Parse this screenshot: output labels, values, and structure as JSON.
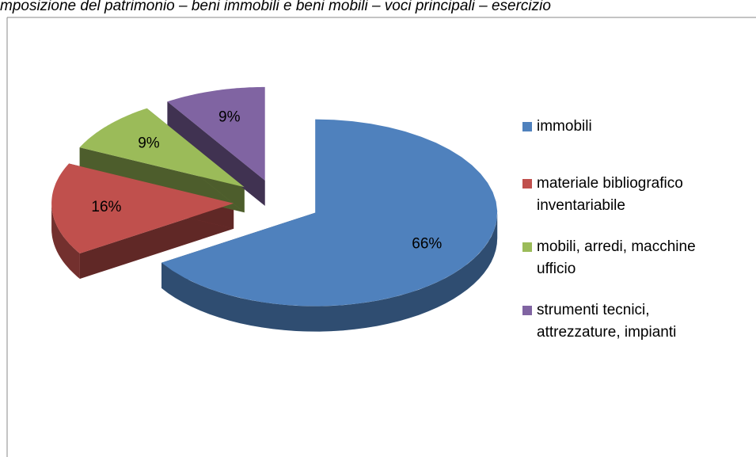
{
  "chart_data": {
    "type": "pie",
    "title": "mposizione del patrimonio – beni immobili e beni mobili – voci principali – esercizio",
    "categories": [
      "immobili",
      "materiale bibliografico inventariabile",
      "mobili, arredi, macchine ufficio",
      "strumenti tecnici, attrezzature, impianti"
    ],
    "values": [
      66,
      16,
      9,
      9
    ],
    "value_labels": [
      "66%",
      "16%",
      "9%",
      "9%"
    ],
    "colors": [
      "#4f81bd",
      "#c0504d",
      "#9bbb59",
      "#8064a2"
    ],
    "legend": "right"
  }
}
